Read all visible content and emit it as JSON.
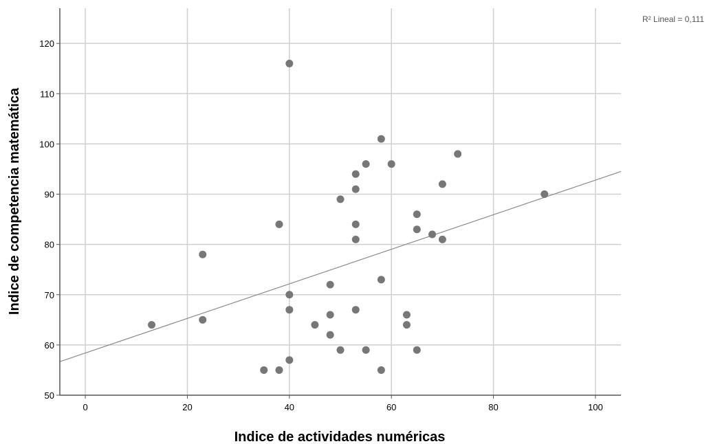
{
  "chart_data": {
    "type": "scatter",
    "title": "",
    "xlabel": "Indice de actividades numéricas",
    "ylabel": "Indice de competencia matemática",
    "xlim": [
      -5,
      105
    ],
    "ylim": [
      50,
      127
    ],
    "xticks": [
      "0",
      "20",
      "40",
      "60",
      "80",
      "100"
    ],
    "yticks": [
      "50",
      "60",
      "70",
      "80",
      "90",
      "100",
      "110",
      "120"
    ],
    "grid": true,
    "annotation": "R² Lineal = 0,111",
    "points": [
      {
        "x": 13,
        "y": 64
      },
      {
        "x": 23,
        "y": 78
      },
      {
        "x": 23,
        "y": 65
      },
      {
        "x": 35,
        "y": 55
      },
      {
        "x": 38,
        "y": 84
      },
      {
        "x": 38,
        "y": 55
      },
      {
        "x": 40,
        "y": 116
      },
      {
        "x": 40,
        "y": 70
      },
      {
        "x": 40,
        "y": 67
      },
      {
        "x": 40,
        "y": 57
      },
      {
        "x": 45,
        "y": 64
      },
      {
        "x": 48,
        "y": 72
      },
      {
        "x": 48,
        "y": 66
      },
      {
        "x": 48,
        "y": 62
      },
      {
        "x": 50,
        "y": 89
      },
      {
        "x": 50,
        "y": 59
      },
      {
        "x": 53,
        "y": 94
      },
      {
        "x": 53,
        "y": 91
      },
      {
        "x": 53,
        "y": 84
      },
      {
        "x": 53,
        "y": 81
      },
      {
        "x": 53,
        "y": 67
      },
      {
        "x": 55,
        "y": 96
      },
      {
        "x": 55,
        "y": 59
      },
      {
        "x": 58,
        "y": 101
      },
      {
        "x": 58,
        "y": 73
      },
      {
        "x": 58,
        "y": 55
      },
      {
        "x": 60,
        "y": 96
      },
      {
        "x": 63,
        "y": 66
      },
      {
        "x": 63,
        "y": 64
      },
      {
        "x": 65,
        "y": 86
      },
      {
        "x": 65,
        "y": 83
      },
      {
        "x": 65,
        "y": 59
      },
      {
        "x": 68,
        "y": 82
      },
      {
        "x": 70,
        "y": 92
      },
      {
        "x": 70,
        "y": 81
      },
      {
        "x": 73,
        "y": 98
      },
      {
        "x": 90,
        "y": 90
      }
    ],
    "fit_line": {
      "intercept": 58.4,
      "slope": 0.344
    },
    "colors": {
      "point": "#777777",
      "line": "#8a8a8a",
      "grid": "#cfcfcf",
      "axis": "#555555"
    }
  }
}
